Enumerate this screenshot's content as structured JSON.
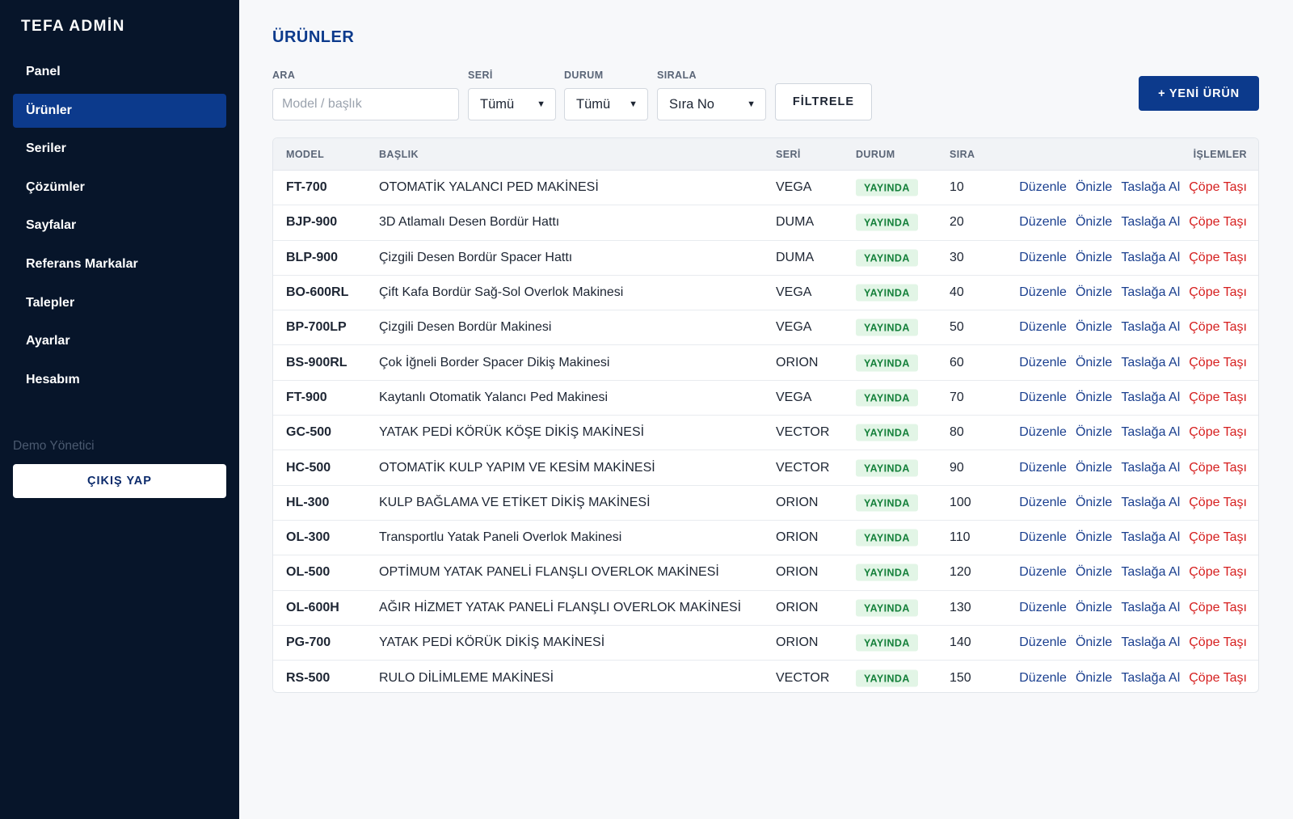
{
  "sidebar": {
    "brand": "TEFA ADMİN",
    "items": [
      {
        "label": "Panel",
        "name": "sidebar-item-panel",
        "active": false
      },
      {
        "label": "Ürünler",
        "name": "sidebar-item-urunler",
        "active": true
      },
      {
        "label": "Seriler",
        "name": "sidebar-item-seriler",
        "active": false
      },
      {
        "label": "Çözümler",
        "name": "sidebar-item-cozumler",
        "active": false
      },
      {
        "label": "Sayfalar",
        "name": "sidebar-item-sayfalar",
        "active": false
      },
      {
        "label": "Referans Markalar",
        "name": "sidebar-item-referans-markalar",
        "active": false
      },
      {
        "label": "Talepler",
        "name": "sidebar-item-talepler",
        "active": false
      },
      {
        "label": "Ayarlar",
        "name": "sidebar-item-ayarlar",
        "active": false
      },
      {
        "label": "Hesabım",
        "name": "sidebar-item-hesabim",
        "active": false
      }
    ],
    "user_name": "Demo Yönetici",
    "logout_label": "ÇIKIŞ YAP"
  },
  "main": {
    "title": "ÜRÜNLER",
    "filters": {
      "search_label": "ARA",
      "search_placeholder": "Model / başlık",
      "series_label": "SERİ",
      "series_value": "Tümü",
      "status_label": "DURUM",
      "status_value": "Tümü",
      "sort_label": "SIRALA",
      "sort_value": "Sıra No",
      "filter_button": "FİLTRELE"
    },
    "new_button": "+ YENİ ÜRÜN",
    "table": {
      "headers": {
        "model": "MODEL",
        "title": "BAŞLIK",
        "series": "SERİ",
        "status": "DURUM",
        "order": "SIRA",
        "actions": "İŞLEMLER"
      },
      "actions": [
        "Düzenle",
        "Önizle",
        "Taslağa Al",
        "Çöpe Taşı"
      ],
      "rows": [
        {
          "model": "FT-700",
          "title": "OTOMATİK YALANCI PED MAKİNESİ",
          "series": "VEGA",
          "status": "YAYINDA",
          "order": "10"
        },
        {
          "model": "BJP-900",
          "title": "3D Atlamalı Desen Bordür Hattı",
          "series": "DUMA",
          "status": "YAYINDA",
          "order": "20"
        },
        {
          "model": "BLP-900",
          "title": "Çizgili Desen Bordür Spacer Hattı",
          "series": "DUMA",
          "status": "YAYINDA",
          "order": "30"
        },
        {
          "model": "BO-600RL",
          "title": "Çift Kafa Bordür Sağ-Sol Overlok Makinesi",
          "series": "VEGA",
          "status": "YAYINDA",
          "order": "40"
        },
        {
          "model": "BP-700LP",
          "title": "Çizgili Desen Bordür Makinesi",
          "series": "VEGA",
          "status": "YAYINDA",
          "order": "50"
        },
        {
          "model": "BS-900RL",
          "title": "Çok İğneli Border Spacer Dikiş Makinesi",
          "series": "ORION",
          "status": "YAYINDA",
          "order": "60"
        },
        {
          "model": "FT-900",
          "title": "Kaytanlı Otomatik Yalancı Ped Makinesi",
          "series": "VEGA",
          "status": "YAYINDA",
          "order": "70"
        },
        {
          "model": "GC-500",
          "title": "YATAK PEDİ KÖRÜK KÖŞE DİKİŞ MAKİNESİ",
          "series": "VECTOR",
          "status": "YAYINDA",
          "order": "80"
        },
        {
          "model": "HC-500",
          "title": "OTOMATİK KULP YAPIM VE KESİM MAKİNESİ",
          "series": "VECTOR",
          "status": "YAYINDA",
          "order": "90"
        },
        {
          "model": "HL-300",
          "title": "KULP BAĞLAMA VE ETİKET DİKİŞ MAKİNESİ",
          "series": "ORION",
          "status": "YAYINDA",
          "order": "100"
        },
        {
          "model": "OL-300",
          "title": "Transportlu Yatak Paneli Overlok Makinesi",
          "series": "ORION",
          "status": "YAYINDA",
          "order": "110"
        },
        {
          "model": "OL-500",
          "title": "OPTİMUM YATAK PANELİ FLANŞLI OVERLOK MAKİNESİ",
          "series": "ORION",
          "status": "YAYINDA",
          "order": "120"
        },
        {
          "model": "OL-600H",
          "title": "AĞIR HİZMET YATAK PANELİ FLANŞLI OVERLOK MAKİNESİ",
          "series": "ORION",
          "status": "YAYINDA",
          "order": "130"
        },
        {
          "model": "PG-700",
          "title": "YATAK PEDİ KÖRÜK DİKİŞ MAKİNESİ",
          "series": "ORION",
          "status": "YAYINDA",
          "order": "140"
        },
        {
          "model": "RS-500",
          "title": "RULO DİLİMLEME MAKİNESİ",
          "series": "VECTOR",
          "status": "YAYINDA",
          "order": "150"
        }
      ]
    }
  },
  "colors": {
    "sidebar_bg": "#07152a",
    "accent": "#0c3a8c",
    "status_green": "#14803a",
    "danger": "#d61f1f"
  }
}
